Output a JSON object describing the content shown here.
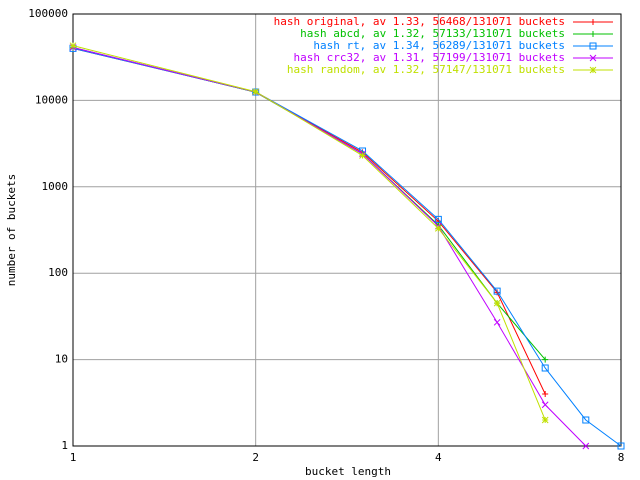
{
  "chart_data": {
    "type": "line",
    "xlabel": "bucket length",
    "ylabel": "number of buckets",
    "x": [
      1,
      2,
      3,
      4,
      5,
      6,
      7,
      8
    ],
    "series": [
      {
        "name": "hash original, av 1.33, 56468/131071 buckets",
        "color": "#ff0000",
        "marker": "plus",
        "values": [
          40000,
          12500,
          2500,
          400,
          60,
          4,
          null,
          null
        ]
      },
      {
        "name": "hash abcd, av 1.32, 57133/131071 buckets",
        "color": "#00c000",
        "marker": "cross",
        "values": [
          41000,
          12400,
          2400,
          360,
          45,
          10,
          null,
          null
        ]
      },
      {
        "name": "hash rt, av 1.34, 56289/131071 buckets",
        "color": "#0080ff",
        "marker": "square",
        "values": [
          40000,
          12500,
          2600,
          420,
          62,
          8,
          2,
          1
        ]
      },
      {
        "name": "hash crc32, av 1.31, 57199/131071 buckets",
        "color": "#c000ff",
        "marker": "x",
        "values": [
          41000,
          12500,
          2400,
          350,
          27,
          3,
          1,
          null
        ]
      },
      {
        "name": "hash random, av 1.32, 57147/131071 buckets",
        "color": "#c0e000",
        "marker": "star",
        "values": [
          43000,
          12600,
          2300,
          330,
          45,
          2,
          null,
          null
        ]
      }
    ],
    "xscale": "log",
    "yscale": "log",
    "xlim": [
      1,
      8
    ],
    "xticks": [
      1,
      2,
      4,
      8
    ],
    "ylim": [
      1,
      100000
    ],
    "yticks": [
      1,
      10,
      100,
      1000,
      10000,
      100000
    ],
    "grid": true,
    "legend": "top right"
  }
}
